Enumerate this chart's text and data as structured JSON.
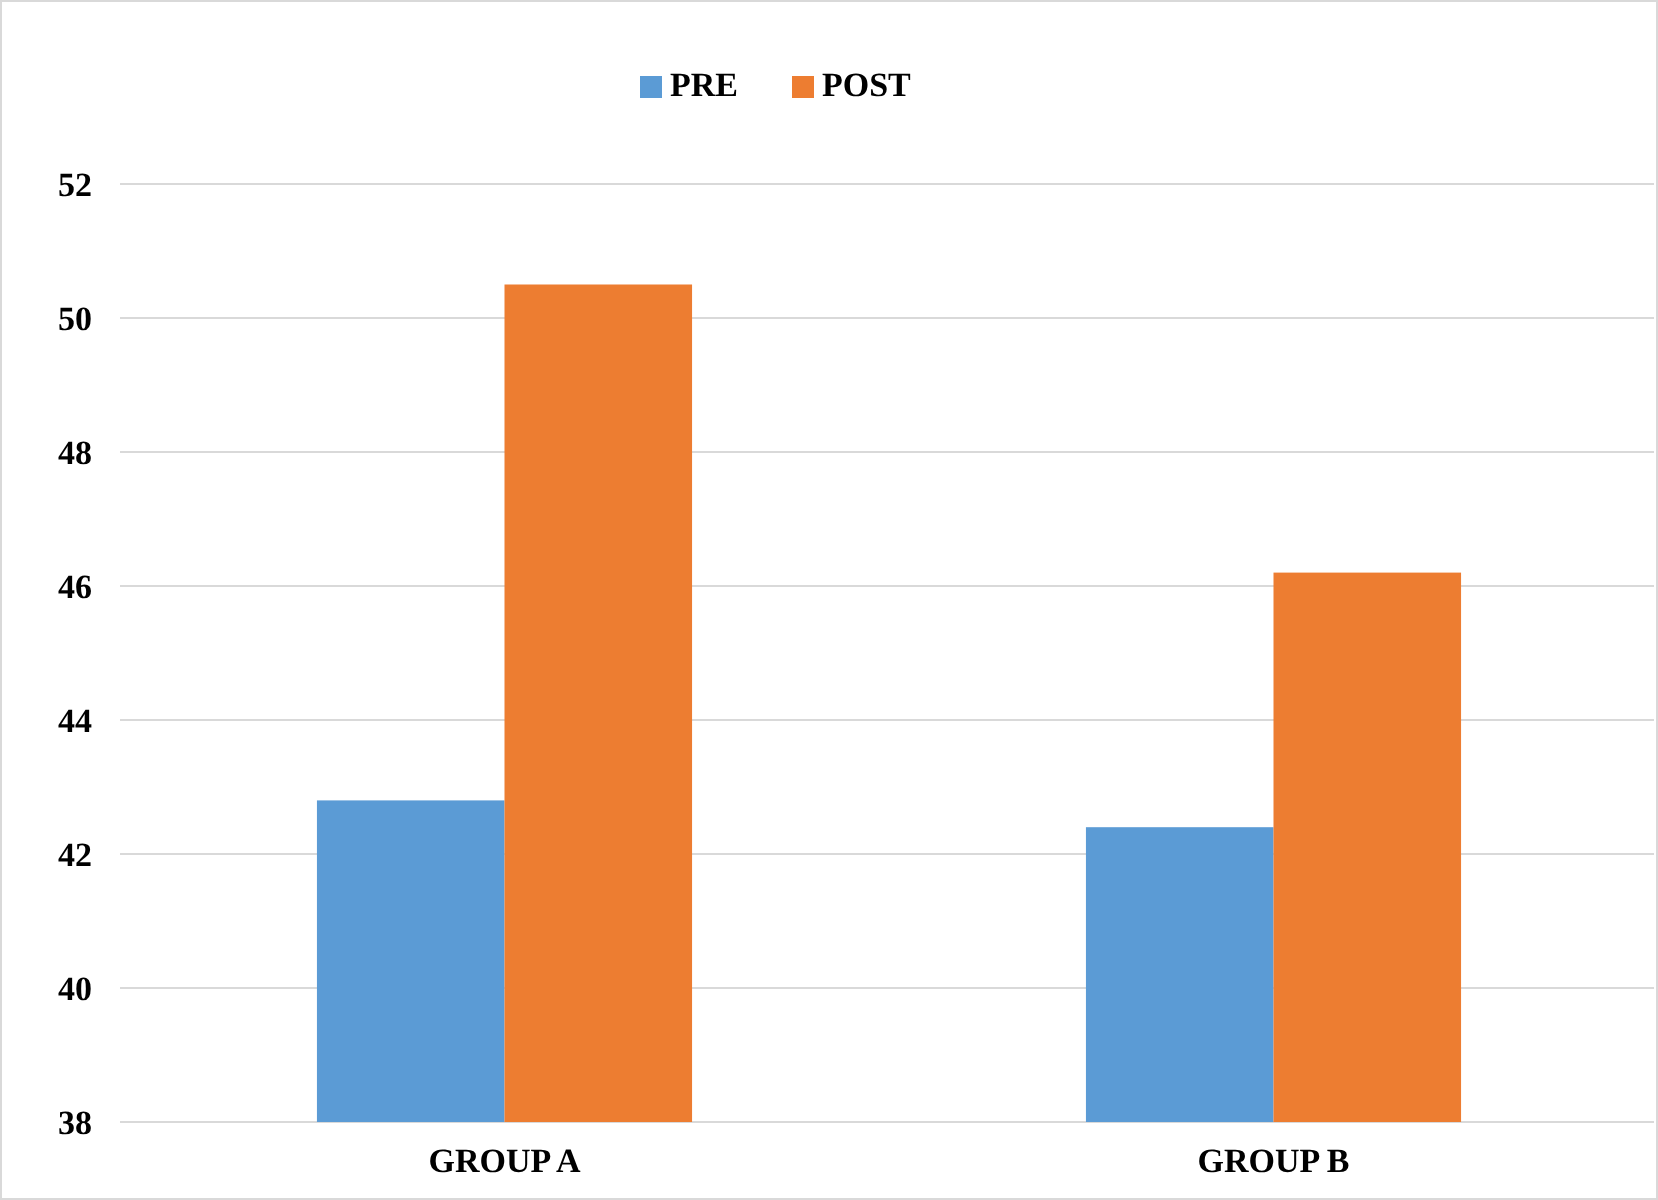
{
  "chart_data": {
    "type": "bar",
    "categories": [
      "GROUP A",
      "GROUP B"
    ],
    "series": [
      {
        "name": "PRE",
        "color": "#5b9bd5",
        "values": [
          42.8,
          42.4
        ]
      },
      {
        "name": "POST",
        "color": "#ed7d31",
        "values": [
          50.5,
          46.2
        ]
      }
    ],
    "ylim": [
      38,
      52
    ],
    "yticks": [
      38,
      40,
      42,
      44,
      46,
      48,
      50,
      52
    ],
    "grid": "y",
    "legend": "top"
  }
}
